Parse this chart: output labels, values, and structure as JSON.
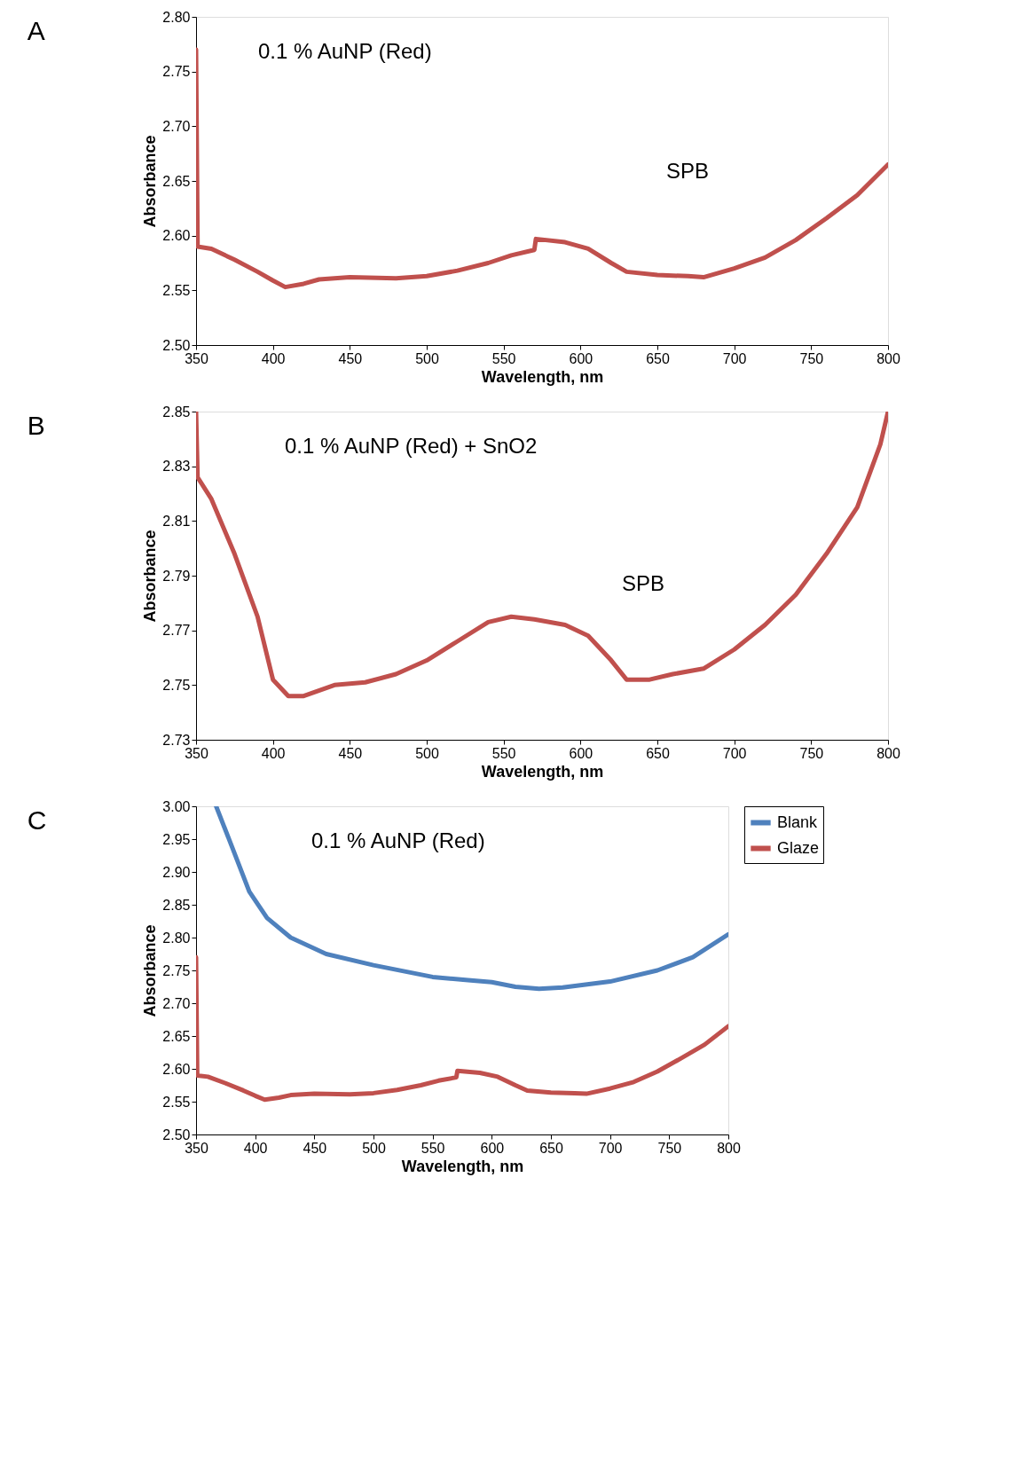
{
  "chart_data": [
    {
      "type": "line",
      "title": "A",
      "xlabel": "Wavelength, nm",
      "ylabel": "Absorbance",
      "xlim": [
        350,
        800
      ],
      "xticks": [
        350,
        400,
        450,
        500,
        550,
        600,
        650,
        700,
        750,
        800
      ],
      "ylim": [
        2.5,
        2.8
      ],
      "yticks": [
        {
          "value": 2.5,
          "label": "2.50"
        },
        {
          "value": 2.55,
          "label": "2.55"
        },
        {
          "value": 2.6,
          "label": "2.60"
        },
        {
          "value": 2.65,
          "label": "2.65"
        },
        {
          "value": 2.7,
          "label": "2.70"
        },
        {
          "value": 2.75,
          "label": "2.75"
        },
        {
          "value": 2.8,
          "label": "2.80"
        }
      ],
      "grid": false,
      "legend": false,
      "line_style": "solid",
      "marker": "none",
      "annotations": [
        "0.1 % AuNP (Red)",
        "SPB"
      ],
      "series": [
        {
          "color": "#c0504d",
          "x": [
            350,
            351,
            360,
            375,
            390,
            400,
            408,
            420,
            430,
            450,
            480,
            500,
            520,
            540,
            555,
            570,
            571,
            590,
            605,
            620,
            630,
            650,
            670,
            680,
            700,
            720,
            740,
            760,
            780,
            800
          ],
          "values": [
            2.77,
            2.59,
            2.588,
            2.578,
            2.567,
            2.559,
            2.553,
            2.556,
            2.56,
            2.562,
            2.561,
            2.563,
            2.568,
            2.575,
            2.582,
            2.587,
            2.597,
            2.594,
            2.588,
            2.575,
            2.567,
            2.564,
            2.563,
            2.562,
            2.57,
            2.58,
            2.596,
            2.616,
            2.637,
            2.665
          ]
        }
      ]
    },
    {
      "type": "line",
      "title": "B",
      "xlabel": "Wavelength, nm",
      "ylabel": "Absorbance",
      "xlim": [
        350,
        800
      ],
      "xticks": [
        350,
        400,
        450,
        500,
        550,
        600,
        650,
        700,
        750,
        800
      ],
      "ylim": [
        2.73,
        2.85
      ],
      "yticks": [
        2.73,
        2.75,
        2.77,
        2.79,
        2.81,
        2.83,
        2.85
      ],
      "grid": false,
      "legend": false,
      "line_style": "solid",
      "marker": "none",
      "annotations": [
        "0.1 % AuNP (Red) + SnO2",
        "SPB"
      ],
      "series": [
        {
          "color": "#c0504d",
          "x": [
            350,
            351,
            360,
            375,
            390,
            400,
            410,
            420,
            440,
            460,
            480,
            500,
            520,
            540,
            555,
            570,
            590,
            605,
            620,
            630,
            645,
            660,
            680,
            700,
            720,
            740,
            760,
            780,
            795,
            800
          ],
          "values": [
            2.85,
            2.826,
            2.818,
            2.798,
            2.775,
            2.752,
            2.746,
            2.746,
            2.75,
            2.751,
            2.754,
            2.759,
            2.766,
            2.773,
            2.775,
            2.774,
            2.772,
            2.768,
            2.759,
            2.752,
            2.752,
            2.754,
            2.756,
            2.763,
            2.772,
            2.783,
            2.798,
            2.815,
            2.838,
            2.85
          ]
        }
      ]
    },
    {
      "type": "line",
      "title": "C",
      "xlabel": "Wavelength, nm",
      "ylabel": "Absorbance",
      "xlim": [
        350,
        800
      ],
      "xticks": [
        350,
        400,
        450,
        500,
        550,
        600,
        650,
        700,
        750,
        800
      ],
      "ylim": [
        2.5,
        3.0
      ],
      "yticks": [
        {
          "value": 2.5,
          "label": "2.50"
        },
        {
          "value": 2.55,
          "label": "2.55"
        },
        {
          "value": 2.6,
          "label": "2.60"
        },
        {
          "value": 2.65,
          "label": "2.65"
        },
        {
          "value": 2.7,
          "label": "2.70"
        },
        {
          "value": 2.75,
          "label": "2.75"
        },
        {
          "value": 2.8,
          "label": "2.80"
        },
        {
          "value": 2.85,
          "label": "2.85"
        },
        {
          "value": 2.9,
          "label": "2.90"
        },
        {
          "value": 2.95,
          "label": "2.95"
        },
        {
          "value": 3.0,
          "label": "3.00"
        }
      ],
      "grid": false,
      "legend": "right",
      "line_style": "solid",
      "marker": "none",
      "annotations": [
        "0.1 % AuNP (Red)"
      ],
      "series": [
        {
          "name": "Blank",
          "color": "#4f81bd",
          "x": [
            367,
            380,
            395,
            410,
            430,
            460,
            500,
            550,
            580,
            600,
            620,
            640,
            660,
            700,
            740,
            770,
            800
          ],
          "values": [
            3.0,
            2.94,
            2.87,
            2.83,
            2.8,
            2.775,
            2.758,
            2.74,
            2.735,
            2.732,
            2.725,
            2.722,
            2.724,
            2.733,
            2.75,
            2.77,
            2.805
          ]
        },
        {
          "name": "Glaze",
          "color": "#c0504d",
          "x": [
            350,
            351,
            360,
            375,
            390,
            400,
            408,
            420,
            430,
            450,
            480,
            500,
            520,
            540,
            555,
            570,
            571,
            590,
            605,
            620,
            630,
            650,
            670,
            680,
            700,
            720,
            740,
            760,
            780,
            800
          ],
          "values": [
            2.77,
            2.59,
            2.588,
            2.578,
            2.567,
            2.559,
            2.553,
            2.556,
            2.56,
            2.562,
            2.561,
            2.563,
            2.568,
            2.575,
            2.582,
            2.587,
            2.597,
            2.594,
            2.588,
            2.575,
            2.567,
            2.564,
            2.563,
            2.562,
            2.57,
            2.58,
            2.596,
            2.616,
            2.637,
            2.665
          ]
        }
      ]
    }
  ]
}
